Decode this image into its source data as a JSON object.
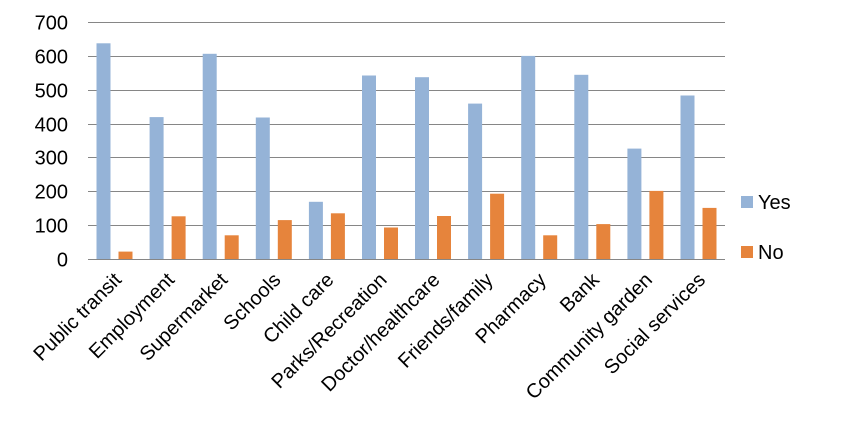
{
  "chart_data": {
    "type": "bar",
    "title": "",
    "xlabel": "",
    "ylabel": "",
    "ylim": [
      0,
      700
    ],
    "yticks": [
      0,
      100,
      200,
      300,
      400,
      500,
      600,
      700
    ],
    "grid": "horizontal",
    "legend_position": "right",
    "categories": [
      "Public transit",
      "Employment",
      "Supermarket",
      "Schools",
      "Child care",
      "Parks/Recreation",
      "Doctor/healthcare",
      "Friends/family",
      "Pharmacy",
      "Bank",
      "Community garden",
      "Social services"
    ],
    "series": [
      {
        "name": "Yes",
        "color": "#95B3D7",
        "values": [
          637,
          419,
          606,
          418,
          169,
          542,
          537,
          459,
          600,
          544,
          326,
          483
        ]
      },
      {
        "name": "No",
        "color": "#E6843C",
        "values": [
          22,
          126,
          70,
          115,
          135,
          93,
          127,
          193,
          70,
          103,
          201,
          151
        ]
      }
    ]
  }
}
